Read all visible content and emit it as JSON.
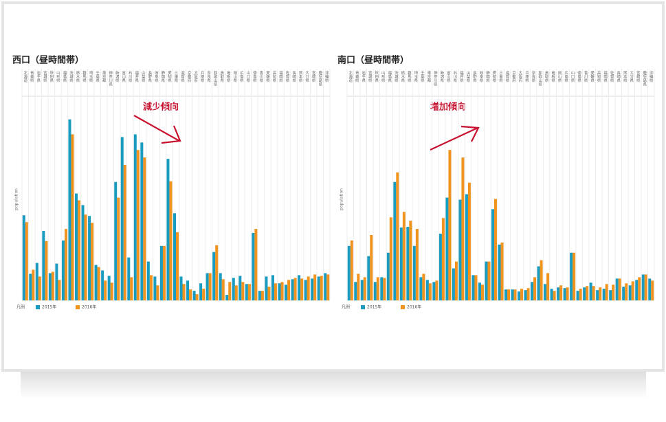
{
  "chart_data": [
    {
      "type": "bar",
      "title": "西口（昼時間帯）",
      "annotation": "減少傾向",
      "y_label": "population",
      "legend_title": "凡例",
      "categories": [
        "北海道",
        "青森県",
        "岩手県",
        "宮城県",
        "秋田県",
        "山形県",
        "福島県",
        "茨城県",
        "栃木県",
        "群馬県",
        "埼玉県",
        "千葉県",
        "東京都",
        "神奈川県",
        "新潟県",
        "富山県",
        "石川県",
        "福井県",
        "山梨県",
        "長野県",
        "岐阜県",
        "静岡県",
        "愛知県",
        "三重県",
        "滋賀県",
        "京都府",
        "大阪府",
        "兵庫県",
        "奈良県",
        "和歌山県",
        "鳥取県",
        "島根県",
        "岡山県",
        "広島県",
        "山口県",
        "徳島県",
        "香川県",
        "愛媛県",
        "高知県",
        "福岡県",
        "佐賀県",
        "長崎県",
        "熊本県",
        "大分県",
        "宮崎県",
        "鹿児島県",
        "沖縄県"
      ],
      "series": [
        {
          "name": "2015年",
          "color": "#1a9bc0",
          "values": [
            125,
            39,
            55,
            102,
            40,
            54,
            88,
            266,
            157,
            140,
            124,
            52,
            44,
            36,
            174,
            240,
            63,
            244,
            232,
            57,
            35,
            80,
            208,
            128,
            35,
            29,
            14,
            25,
            40,
            71,
            40,
            8,
            33,
            36,
            24,
            99,
            14,
            35,
            37,
            25,
            23,
            31,
            37,
            30,
            32,
            35,
            40
          ]
        },
        {
          "name": "2016年",
          "color": "#f0941f",
          "values": [
            115,
            45,
            35,
            87,
            42,
            30,
            105,
            244,
            147,
            126,
            114,
            49,
            29,
            26,
            151,
            199,
            34,
            221,
            210,
            37,
            22,
            80,
            175,
            100,
            24,
            16,
            9,
            17,
            40,
            81,
            31,
            27,
            22,
            27,
            24,
            105,
            14,
            20,
            25,
            27,
            30,
            33,
            32,
            35,
            38,
            36,
            38
          ]
        }
      ],
      "ylim": [
        0,
        300
      ],
      "grid": true
    },
    {
      "type": "bar",
      "title": "南口（昼時間帯）",
      "annotation": "増加傾向",
      "y_label": "population",
      "legend_title": "凡例",
      "categories": [
        "北海道",
        "青森県",
        "岩手県",
        "宮城県",
        "秋田県",
        "山形県",
        "福島県",
        "茨城県",
        "栃木県",
        "群馬県",
        "埼玉県",
        "千葉県",
        "東京都",
        "神奈川県",
        "新潟県",
        "富山県",
        "石川県",
        "福井県",
        "山梨県",
        "長野県",
        "岐阜県",
        "静岡県",
        "愛知県",
        "三重県",
        "滋賀県",
        "京都府",
        "大阪府",
        "兵庫県",
        "奈良県",
        "和歌山県",
        "鳥取県",
        "島根県",
        "岡山県",
        "広島県",
        "山口県",
        "徳島県",
        "香川県",
        "愛媛県",
        "高知県",
        "福岡県",
        "佐賀県",
        "長崎県",
        "熊本県",
        "大分県",
        "宮崎県",
        "鹿児島県",
        "沖縄県"
      ],
      "series": [
        {
          "name": "2015年",
          "color": "#1a9bc0",
          "values": [
            80,
            27,
            30,
            65,
            27,
            34,
            70,
            174,
            107,
            108,
            80,
            34,
            30,
            27,
            98,
            151,
            47,
            148,
            156,
            37,
            26,
            57,
            134,
            82,
            16,
            16,
            13,
            15,
            27,
            50,
            24,
            17,
            19,
            18,
            70,
            14,
            19,
            26,
            15,
            17,
            15,
            32,
            20,
            22,
            30,
            38,
            32
          ]
        },
        {
          "name": "2016年",
          "color": "#f0941f",
          "values": [
            88,
            39,
            34,
            96,
            34,
            33,
            122,
            188,
            130,
            117,
            105,
            39,
            25,
            29,
            121,
            221,
            57,
            210,
            173,
            37,
            23,
            57,
            149,
            85,
            16,
            16,
            17,
            18,
            34,
            59,
            40,
            14,
            22,
            19,
            70,
            17,
            21,
            21,
            19,
            24,
            23,
            32,
            25,
            28,
            34,
            38,
            29
          ]
        }
      ],
      "ylim": [
        0,
        300
      ],
      "grid": true
    }
  ]
}
